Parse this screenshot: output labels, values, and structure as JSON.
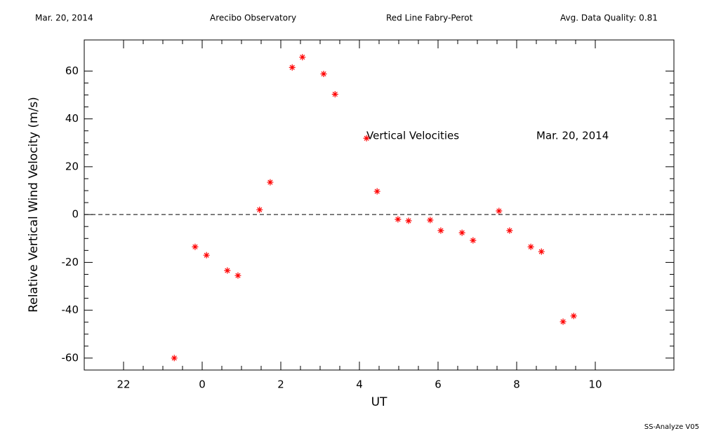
{
  "chart_data": {
    "type": "scatter",
    "header": [
      "Mar. 20, 2014",
      "Arecibo Observatory",
      "Red Line Fabry-Perot",
      "Avg. Data Quality: 0.81"
    ],
    "annotations": [
      "Vertical Velocities",
      "Mar. 20, 2014"
    ],
    "footer": "SS-Analyze V05",
    "xlabel": "UT",
    "ylabel": "Relative Vertical Wind Velocity (m/s)",
    "xlim": [
      -3,
      12
    ],
    "ylim": [
      -65,
      73
    ],
    "xticks": [
      {
        "value": -2,
        "label": "22"
      },
      0,
      2,
      4,
      6,
      8,
      10
    ],
    "yticks": [
      -60,
      -40,
      -20,
      0,
      20,
      40,
      60
    ],
    "hline": 0,
    "color": "#ff0000",
    "x": [
      -0.71,
      -0.18,
      0.11,
      0.64,
      0.91,
      1.46,
      1.73,
      2.29,
      2.55,
      3.09,
      3.38,
      4.18,
      4.45,
      4.98,
      5.25,
      5.8,
      6.07,
      6.61,
      6.89,
      7.55,
      7.82,
      8.36,
      8.63,
      9.18,
      9.45
    ],
    "values": [
      -60,
      -13.5,
      -17,
      -23.4,
      -25.5,
      2,
      13.5,
      61.5,
      65.8,
      58.8,
      50.3,
      31.9,
      9.7,
      -2,
      -2.6,
      -2.3,
      -6.7,
      -7.6,
      -10.8,
      1.5,
      -6.7,
      -13.5,
      -15.5,
      -44.8,
      -42.4
    ]
  }
}
